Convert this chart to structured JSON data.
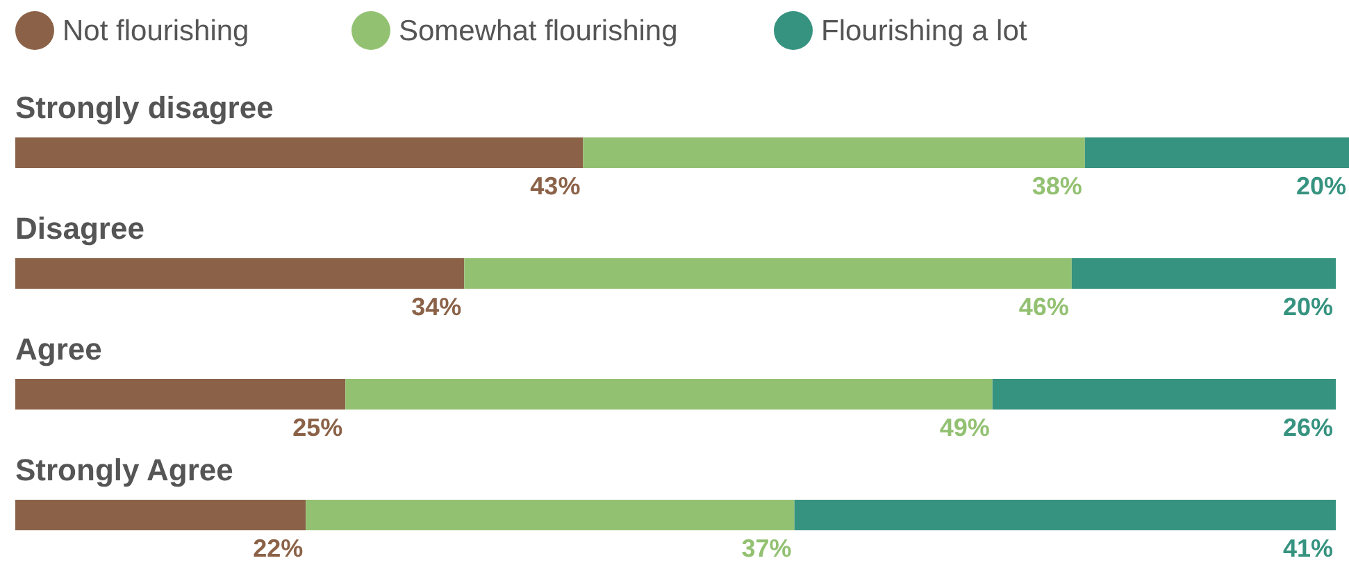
{
  "chart_data": {
    "type": "bar",
    "orientation": "horizontal",
    "stacked": true,
    "legend": "top left",
    "categories": [
      "Strongly disagree",
      "Disagree",
      "Agree",
      "Strongly Agree"
    ],
    "series": [
      {
        "name": "Not flourishing",
        "color": "#8b6248",
        "values": [
          43,
          34,
          25,
          22
        ],
        "value_labels": [
          "43%",
          "34%",
          "25%",
          "22%"
        ]
      },
      {
        "name": "Somewhat flourishing",
        "color": "#93c172",
        "values": [
          38,
          46,
          49,
          37
        ],
        "value_labels": [
          "38%",
          "46%",
          "49%",
          "37%"
        ]
      },
      {
        "name": "Flourishing a lot",
        "color": "#369380",
        "values": [
          20,
          20,
          26,
          41
        ],
        "value_labels": [
          "20%",
          "20%",
          "26%",
          "41%"
        ]
      }
    ]
  }
}
